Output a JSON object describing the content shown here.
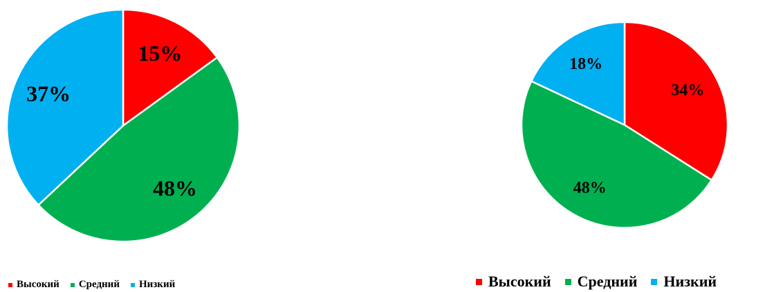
{
  "chart_data": [
    {
      "type": "pie",
      "title": "",
      "categories": [
        "Высокий",
        "Средний",
        "Низкий"
      ],
      "values": [
        15,
        48,
        37
      ],
      "labels": [
        "15%",
        "48%",
        "37%"
      ],
      "colors": [
        "#ff0000",
        "#00b050",
        "#00b0f0"
      ],
      "legend_position": "bottom"
    },
    {
      "type": "pie",
      "title": "",
      "categories": [
        "Высокий",
        "Средний",
        "Низкий"
      ],
      "values": [
        34,
        48,
        18
      ],
      "labels": [
        "34%",
        "48%",
        "18%"
      ],
      "colors": [
        "#ff0000",
        "#00b050",
        "#00b0f0"
      ],
      "legend_position": "bottom"
    }
  ]
}
